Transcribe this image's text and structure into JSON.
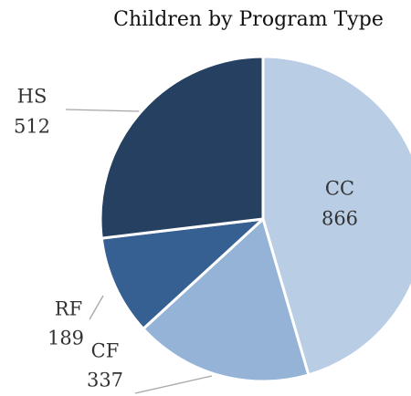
{
  "chart_data": {
    "type": "pie",
    "title": "Children by Program Type",
    "categories": [
      "CC",
      "CF",
      "RF",
      "HS"
    ],
    "values": [
      866,
      337,
      189,
      512
    ],
    "colors": [
      "#b9cde5",
      "#95b3d7",
      "#376092",
      "#254061"
    ]
  }
}
